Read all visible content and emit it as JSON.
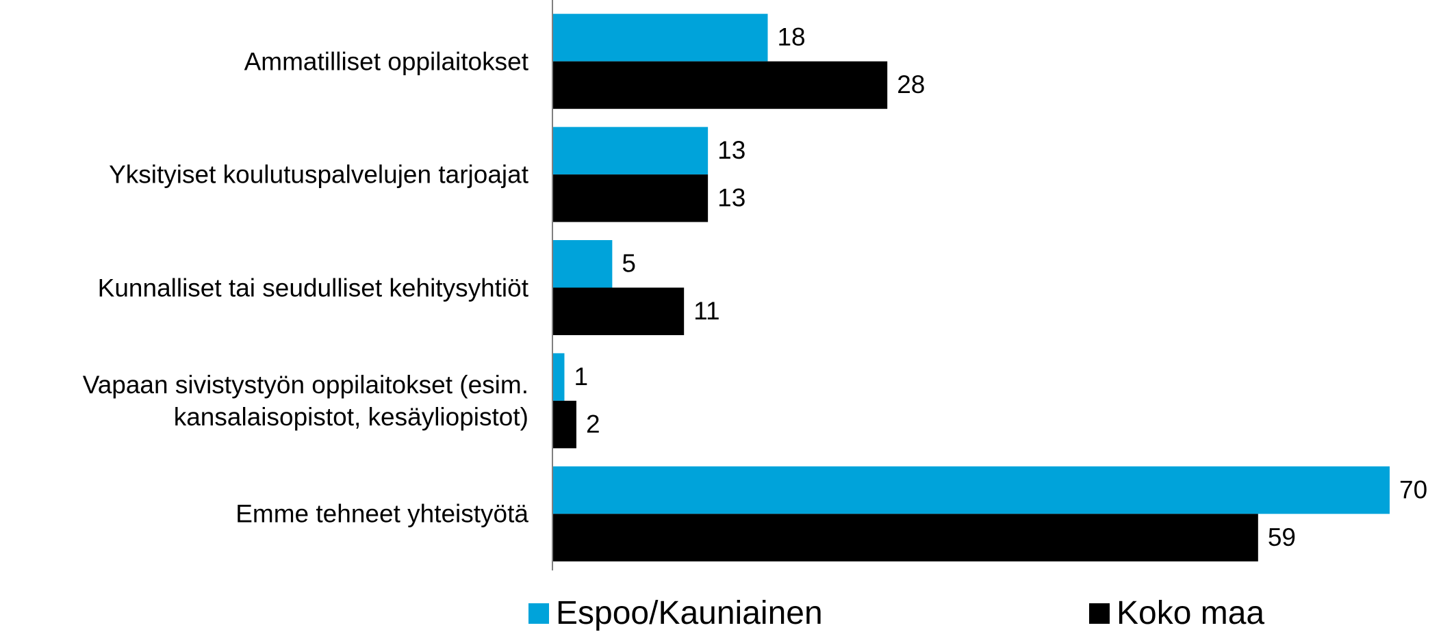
{
  "chart_data": {
    "type": "bar",
    "orientation": "horizontal",
    "categories": [
      "Ammatilliset oppilaitokset",
      "Yksityiset koulutuspalvelujen tarjoajat",
      "Kunnalliset tai seudulliset kehitysyhtiöt",
      "Vapaan sivistystyön oppilaitokset (esim.\nkansalaisopistot, kesäyliopistot)",
      "Emme tehneet yhteistyötä"
    ],
    "series": [
      {
        "name": "Espoo/Kauniainen",
        "color": "#00a3da",
        "values": [
          18,
          13,
          5,
          1,
          70
        ]
      },
      {
        "name": "Koko maa",
        "color": "#000000",
        "values": [
          28,
          13,
          11,
          2,
          59
        ]
      }
    ],
    "xlim": [
      0,
      70
    ],
    "grid": false,
    "legend": "bottom"
  }
}
